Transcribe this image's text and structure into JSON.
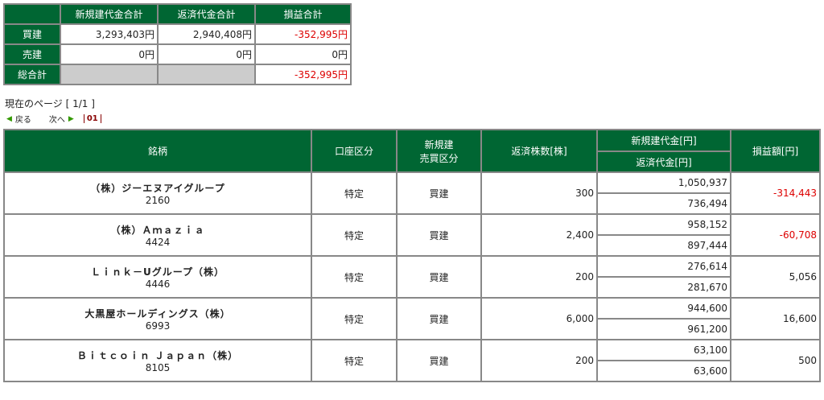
{
  "summary": {
    "headers": [
      "新規建代金合計",
      "返済代金合計",
      "損益合計"
    ],
    "rows": [
      {
        "label": "買建",
        "new": "3,293,403円",
        "close": "2,940,408円",
        "pl": "-352,995円"
      },
      {
        "label": "売建",
        "new": "0円",
        "close": "0円",
        "pl": "0円"
      },
      {
        "label": "総合計",
        "pl": "-352,995円"
      }
    ]
  },
  "pagination": {
    "current": "現在のページ [ 1/1 ]",
    "back": "戻る",
    "next": "次へ",
    "page": "01"
  },
  "table": {
    "headers": {
      "name": "銘柄",
      "account": "口座区分",
      "side": "新規建\n売買区分",
      "qty": "返済株数[株]",
      "new": "新規建代金[円]",
      "close": "返済代金[円]",
      "pl": "損益額[円]"
    },
    "rows": [
      {
        "name": "（株）ジーエヌアイグループ",
        "code": "2160",
        "account": "特定",
        "side": "買建",
        "qty": "300",
        "new": "1,050,937",
        "close": "736,494",
        "pl": "-314,443"
      },
      {
        "name": "（株）Ａｍａｚｉａ",
        "code": "4424",
        "account": "特定",
        "side": "買建",
        "qty": "2,400",
        "new": "958,152",
        "close": "897,444",
        "pl": "-60,708"
      },
      {
        "name": "Ｌｉｎｋ－Uグループ（株）",
        "code": "4446",
        "account": "特定",
        "side": "買建",
        "qty": "200",
        "new": "276,614",
        "close": "281,670",
        "pl": "5,056"
      },
      {
        "name": "大黒屋ホールディングス（株）",
        "code": "6993",
        "account": "特定",
        "side": "買建",
        "qty": "6,000",
        "new": "944,600",
        "close": "961,200",
        "pl": "16,600"
      },
      {
        "name": "Ｂｉｔｃｏｉｎ Ｊａｐａｎ（株）",
        "code": "8105",
        "account": "特定",
        "side": "買建",
        "qty": "200",
        "new": "63,100",
        "close": "63,600",
        "pl": "500"
      }
    ]
  },
  "colors": {
    "header": "#006633",
    "negative": "#dd0000"
  }
}
